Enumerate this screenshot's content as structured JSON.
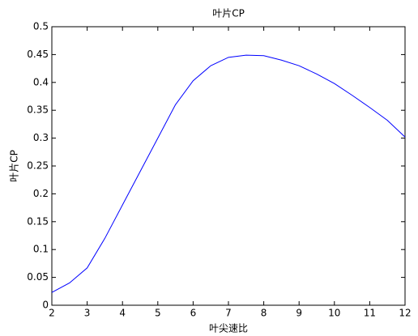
{
  "chart_data": {
    "type": "line",
    "title": "叶片CP",
    "x_label": "叶尖速比",
    "y_label": "叶片CP",
    "x": [
      2,
      2.5,
      3,
      3.5,
      4,
      4.5,
      5,
      5.5,
      6,
      6.5,
      7,
      7.5,
      8,
      8.5,
      9,
      9.5,
      10,
      10.5,
      11,
      11.5,
      12
    ],
    "series": [
      {
        "name": "叶片CP",
        "color": "#0000ff",
        "values": [
          0.023,
          0.04,
          0.067,
          0.12,
          0.18,
          0.24,
          0.3,
          0.36,
          0.403,
          0.43,
          0.445,
          0.449,
          0.448,
          0.44,
          0.43,
          0.415,
          0.398,
          0.377,
          0.355,
          0.332,
          0.302
        ]
      }
    ],
    "xlim": [
      2,
      12
    ],
    "xticks": [
      2,
      3,
      4,
      5,
      6,
      7,
      8,
      9,
      10,
      11,
      12
    ],
    "ylim": [
      0,
      0.5
    ],
    "yticks": [
      0,
      0.05,
      0.1,
      0.15,
      0.2,
      0.25,
      0.3,
      0.35,
      0.4,
      0.45,
      0.5
    ],
    "grid": false
  }
}
